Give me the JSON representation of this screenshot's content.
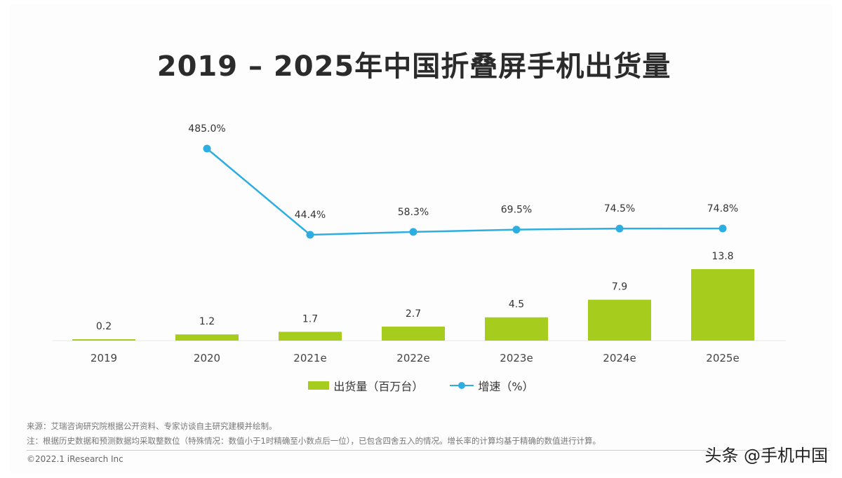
{
  "title": "2019 – 2025年中国折叠屏手机出货量",
  "colors": {
    "bar": "#a6cd1e",
    "line": "#2eaee0",
    "text": "#333333"
  },
  "chart_data": {
    "type": "bar+line",
    "categories": [
      "2019",
      "2020",
      "2021e",
      "2022e",
      "2023e",
      "2024e",
      "2025e"
    ],
    "series": [
      {
        "name": "出货量（百万台）",
        "type": "bar",
        "values": [
          0.2,
          1.2,
          1.7,
          2.7,
          4.5,
          7.9,
          13.8
        ],
        "labels": [
          "0.2",
          "1.2",
          "1.7",
          "2.7",
          "4.5",
          "7.9",
          "13.8"
        ]
      },
      {
        "name": "增速（%）",
        "type": "line",
        "values": [
          null,
          485.0,
          44.4,
          58.3,
          69.5,
          74.5,
          74.8
        ],
        "labels": [
          "",
          "485.0%",
          "44.4%",
          "58.3%",
          "69.5%",
          "74.5%",
          "74.8%"
        ]
      }
    ],
    "legend_position": "bottom-center",
    "grid": false
  },
  "legend": {
    "bar_label": "出货量（百万台）",
    "line_label": "增速（%）"
  },
  "notes": {
    "source": "来源：艾瑞咨询研究院根据公开资料、专家访谈自主研究建模并绘制。",
    "note": "注：根据历史数据和预测数据均采取整数位（特殊情况：数值小于1时精确至小数点后一位），已包含四舍五入的情况。增长率的计算均基于精确的数值进行计算。"
  },
  "copyright": "©2022.1 iResearch Inc",
  "watermark": "头条 @手机中国"
}
